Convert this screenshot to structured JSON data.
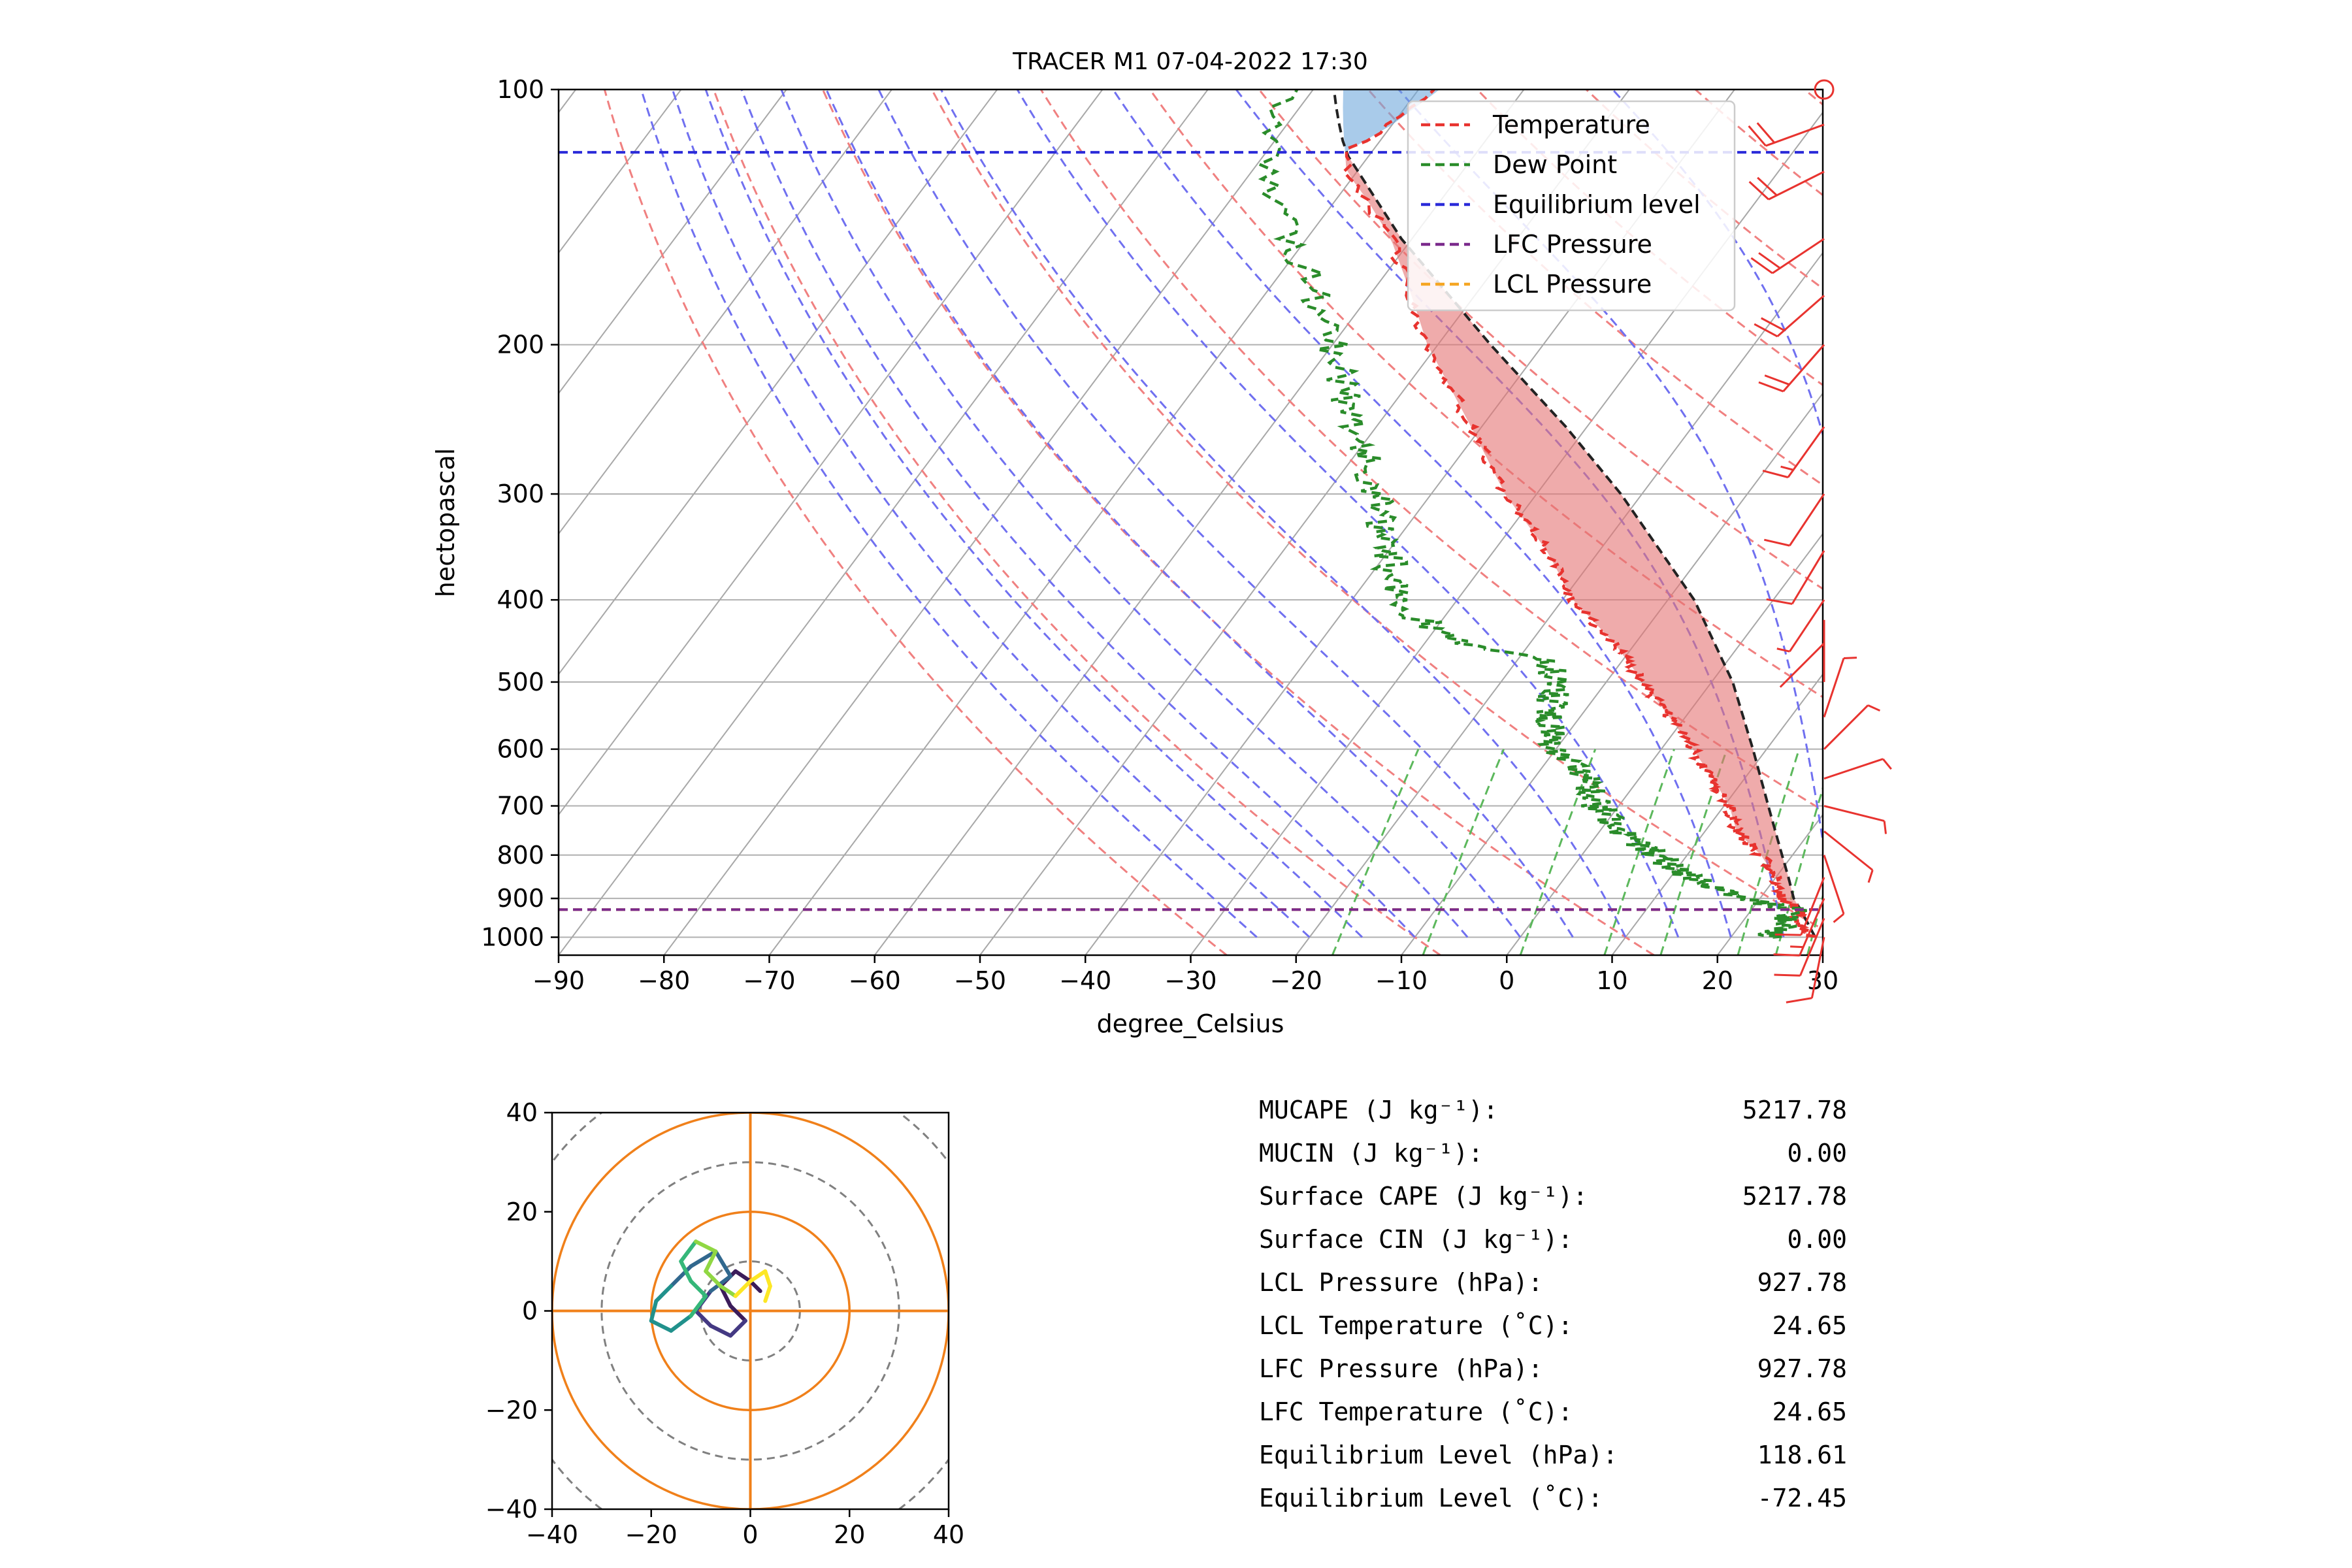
{
  "skewt": {
    "title": "TRACER M1 07-04-2022 17:30",
    "xlabel": "degree_Celsius",
    "ylabel": "hectopascal",
    "x_ticks": [
      "−90",
      "−80",
      "−70",
      "−60",
      "−50",
      "−40",
      "−30",
      "−20",
      "−10",
      "0",
      "10",
      "20",
      "30"
    ],
    "y_ticks": [
      "100",
      "200",
      "300",
      "400",
      "500",
      "600",
      "700",
      "800",
      "900",
      "1000"
    ],
    "legend": [
      {
        "label": "Temperature",
        "color": "#e8332f"
      },
      {
        "label": "Dew Point",
        "color": "#2a8c2a"
      },
      {
        "label": "Equilibrium level",
        "color": "#2b2bd9"
      },
      {
        "label": "LFC Pressure",
        "color": "#7b2a8c"
      },
      {
        "label": "LCL Pressure",
        "color": "#f5a623"
      }
    ]
  },
  "hodograph": {
    "x_ticks": [
      "−40",
      "−20",
      "0",
      "20",
      "40"
    ],
    "y_ticks": [
      "40",
      "20",
      "0",
      "−20",
      "−40"
    ]
  },
  "stats": [
    {
      "label": "MUCAPE (J kg⁻¹):",
      "value": "5217.78"
    },
    {
      "label": "MUCIN (J kg⁻¹):",
      "value": "0.00"
    },
    {
      "label": "Surface CAPE (J kg⁻¹):",
      "value": "5217.78"
    },
    {
      "label": "Surface CIN (J kg⁻¹):",
      "value": "0.00"
    },
    {
      "label": "LCL Pressure (hPa):",
      "value": "927.78"
    },
    {
      "label": "LCL Temperature (˚C):",
      "value": "24.65"
    },
    {
      "label": "LFC Pressure (hPa):",
      "value": "927.78"
    },
    {
      "label": "LFC Temperature (˚C):",
      "value": "24.65"
    },
    {
      "label": "Equilibrium Level (hPa):",
      "value": "118.61"
    },
    {
      "label": "Equilibrium Level (˚C):",
      "value": "-72.45"
    }
  ],
  "chart_data": [
    {
      "type": "line",
      "chart": "skew-t log-p diagram",
      "title": "TRACER M1 07-04-2022 17:30",
      "xlabel": "degree_Celsius",
      "ylabel": "hectopascal",
      "xlim": [
        -90,
        30
      ],
      "ylim": [
        1050,
        100
      ],
      "y_scale": "log",
      "grid": true,
      "legend_position": "top-right",
      "series": [
        {
          "name": "Temperature",
          "pressure": [
            1000,
            975,
            950,
            928,
            900,
            850,
            800,
            750,
            700,
            650,
            600,
            550,
            500,
            450,
            400,
            350,
            300,
            250,
            200,
            175,
            150,
            135,
            125,
            118.6,
            110,
            100
          ],
          "temperature": [
            28,
            26,
            25,
            24.6,
            22,
            20,
            17,
            13,
            10.5,
            7,
            3,
            -1.5,
            -6.5,
            -12,
            -19,
            -25,
            -33,
            -41,
            -51,
            -56,
            -62,
            -67,
            -71,
            -72.5,
            -70,
            -68
          ]
        },
        {
          "name": "Dew Point",
          "pressure": [
            1000,
            975,
            950,
            928,
            900,
            850,
            800,
            750,
            700,
            650,
            600,
            550,
            520,
            500,
            470,
            450,
            400,
            350,
            300,
            250,
            200,
            170,
            150,
            125,
            100
          ],
          "temperature": [
            23.5,
            24,
            24,
            24.6,
            18,
            12,
            7,
            2,
            -2,
            -5,
            -10,
            -13,
            -14,
            -15,
            -17,
            -27,
            -36,
            -40,
            -45,
            -52,
            -60,
            -66,
            -72,
            -78,
            -83
          ]
        },
        {
          "name": "Equilibrium level",
          "pressure": 118.61
        },
        {
          "name": "LFC Pressure",
          "pressure": 927.78
        },
        {
          "name": "LCL Pressure",
          "pressure": 927.78
        }
      ],
      "parcel_profile": {
        "pressure": [
          1000,
          928,
          900,
          850,
          800,
          700,
          600,
          500,
          400,
          300,
          250,
          200,
          150,
          118.6
        ],
        "temperature": [
          28,
          24.65,
          23.2,
          21.2,
          19,
          14.2,
          8.7,
          2,
          -7.5,
          -22,
          -32,
          -45,
          -61,
          -72.45
        ]
      },
      "wind_barbs": {
        "pressure": [
          1000,
          950,
          900,
          850,
          800,
          750,
          700,
          650,
          600,
          550,
          500,
          450,
          400,
          350,
          300,
          250,
          200,
          175,
          150,
          125,
          110
        ],
        "u_kt": [
          2,
          5,
          6,
          4,
          -2,
          -5,
          -8,
          -6,
          -4,
          -2,
          0,
          2,
          4,
          6,
          8,
          10,
          14,
          16,
          18,
          20,
          22
        ],
        "v_kt": [
          10,
          12,
          14,
          10,
          6,
          4,
          2,
          -2,
          -4,
          -6,
          -4,
          2,
          6,
          10,
          12,
          14,
          16,
          14,
          12,
          10,
          8
        ]
      }
    },
    {
      "type": "line",
      "chart": "hodograph",
      "xlim": [
        -40,
        40
      ],
      "ylim": [
        -40,
        40
      ],
      "rings": [
        10,
        20,
        30,
        40
      ],
      "series": [
        {
          "name": "",
          "u": [
            2,
            0,
            -3,
            -6,
            -4,
            -1,
            -4,
            -8,
            -11,
            -8,
            -4,
            -7,
            -12,
            -16,
            -19,
            -20,
            -16,
            -12,
            -9,
            -12,
            -14,
            -11,
            -7,
            -9,
            -6,
            -3,
            0,
            3,
            4,
            3
          ],
          "v": [
            4,
            6,
            8,
            5,
            1,
            -2,
            -5,
            -3,
            0,
            4,
            7,
            12,
            9,
            5,
            2,
            -2,
            -4,
            -1,
            3,
            6,
            10,
            14,
            12,
            8,
            5,
            3,
            6,
            8,
            5,
            2
          ]
        }
      ]
    }
  ]
}
